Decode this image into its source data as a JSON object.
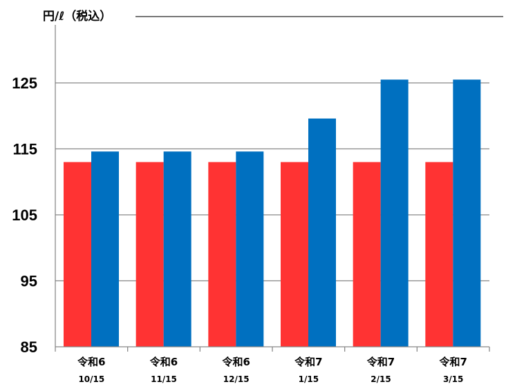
{
  "chart_data": {
    "type": "bar",
    "y_unit_label": "円/ℓ（税込）",
    "categories": [
      [
        "令和6",
        "10/15"
      ],
      [
        "令和6",
        "11/15"
      ],
      [
        "令和6",
        "12/15"
      ],
      [
        "令和7",
        "1/15"
      ],
      [
        "令和7",
        "2/15"
      ],
      [
        "令和7",
        "3/15"
      ]
    ],
    "series": [
      {
        "color": "#ff3333",
        "values": [
          113,
          113,
          113,
          113,
          113,
          113
        ]
      },
      {
        "color": "#0070c0",
        "values": [
          114.6,
          114.6,
          114.6,
          119.6,
          125.5,
          125.5
        ]
      }
    ],
    "ylim": [
      85,
      125
    ],
    "yticks": [
      85,
      95,
      105,
      115,
      125
    ],
    "grid": true,
    "legend": "none"
  }
}
